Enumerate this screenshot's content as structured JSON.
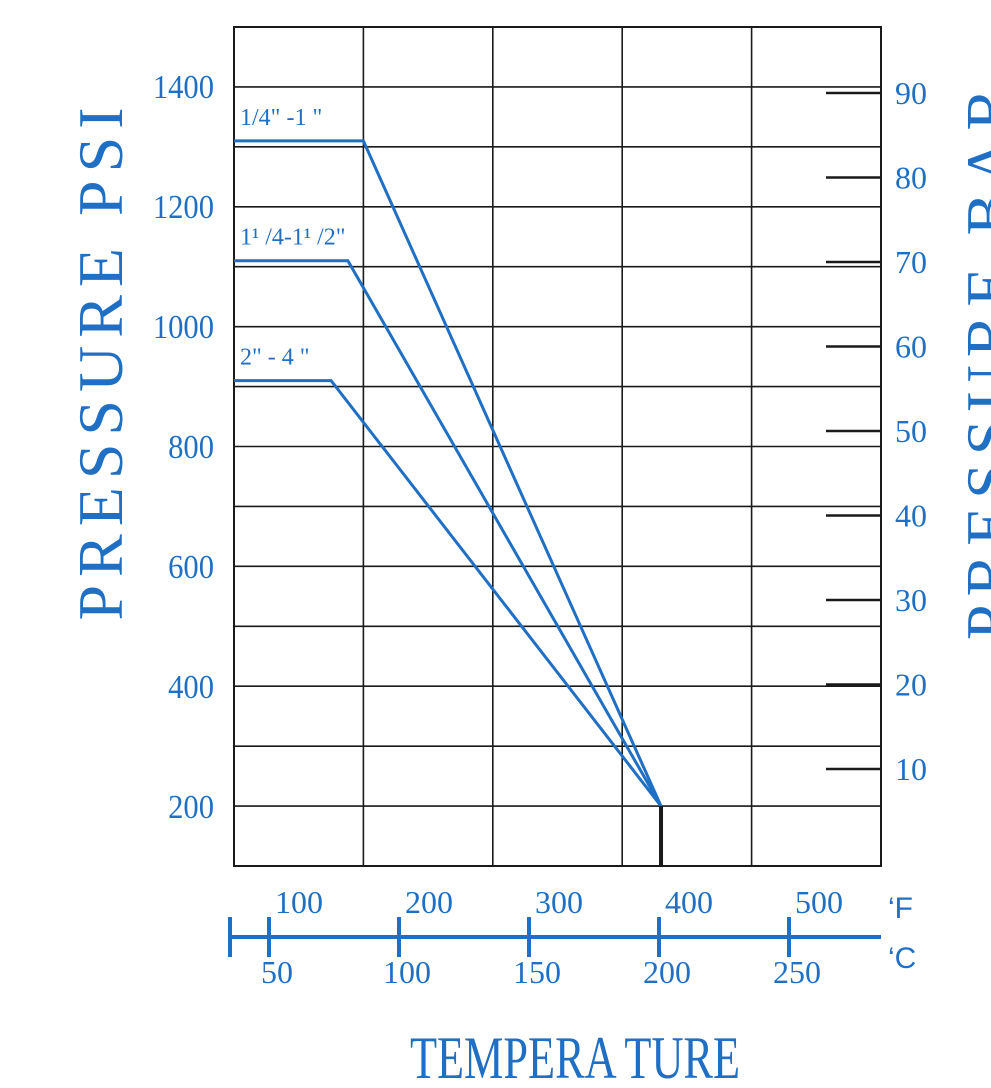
{
  "chart_data": {
    "type": "line",
    "left_axis_label": "PRESSURE PSI",
    "right_axis_label": "PRESSURE BAR",
    "x_axis_label": "TEMPERA TURE",
    "unit_f": "‘F",
    "unit_c": "‘C",
    "psi_ticks": [
      "1400",
      "1200",
      "1000",
      "800",
      "600",
      "400",
      "200"
    ],
    "bar_ticks": [
      "90",
      "80",
      "70",
      "60",
      "50",
      "40",
      "30",
      "20",
      "10"
    ],
    "f_ticks": [
      "100",
      "200",
      "300",
      "400",
      "500"
    ],
    "c_ticks": [
      "50",
      "100",
      "150",
      "200",
      "250"
    ],
    "ylim_psi": [
      0,
      1400
    ],
    "xlim_f": [
      0,
      500
    ],
    "grid": true,
    "series": [
      {
        "name": "1/4\" -1 \"",
        "x": [
          0,
          100,
          330
        ],
        "y": [
          1210,
          1210,
          100
        ]
      },
      {
        "name": "1¹ /4-1¹ /2\"",
        "x": [
          0,
          88,
          330
        ],
        "y": [
          1010,
          1010,
          100
        ]
      },
      {
        "name": "2\" - 4 \"",
        "x": [
          0,
          75,
          330
        ],
        "y": [
          810,
          810,
          100
        ]
      }
    ],
    "colors": {
      "accent": "#1f6fc4",
      "grid": "#1a1a1a"
    }
  }
}
